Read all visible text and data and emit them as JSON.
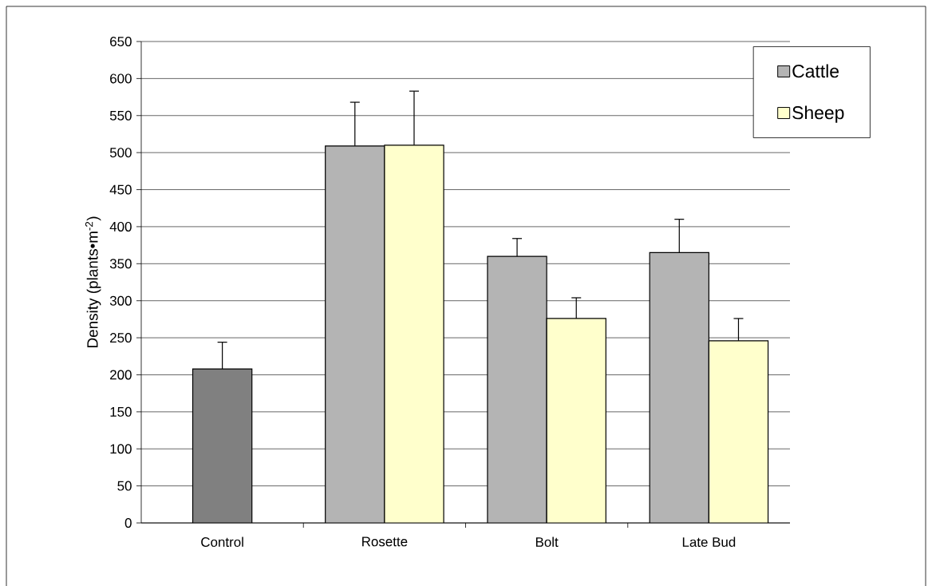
{
  "chart_data": {
    "type": "bar",
    "ylabel": "Density (plants•m$^{-2}$)",
    "categories": [
      "Control",
      "Rosette",
      "Bolt",
      "Late Bud"
    ],
    "series": [
      {
        "color": "#808080",
        "values": [
          208,
          null,
          null,
          null
        ],
        "errors": [
          [
            208,
            244
          ],
          null,
          null,
          null
        ]
      },
      {
        "name": "Cattle",
        "color": "#b4b4b4",
        "values": [
          null,
          509,
          360,
          365
        ],
        "errors": [
          null,
          [
            509,
            568
          ],
          [
            360,
            384
          ],
          [
            365,
            410
          ]
        ]
      },
      {
        "name": "Sheep",
        "color": "#ffffcc",
        "values": [
          null,
          510,
          276,
          246
        ],
        "errors": [
          null,
          [
            510,
            583
          ],
          [
            276,
            304
          ],
          [
            246,
            276
          ]
        ]
      }
    ],
    "ylim": [
      0,
      650
    ],
    "yticks": [
      0,
      50,
      100,
      150,
      200,
      250,
      300,
      350,
      400,
      450,
      500,
      550,
      600,
      650
    ],
    "grid": "y",
    "legend": "top right"
  }
}
